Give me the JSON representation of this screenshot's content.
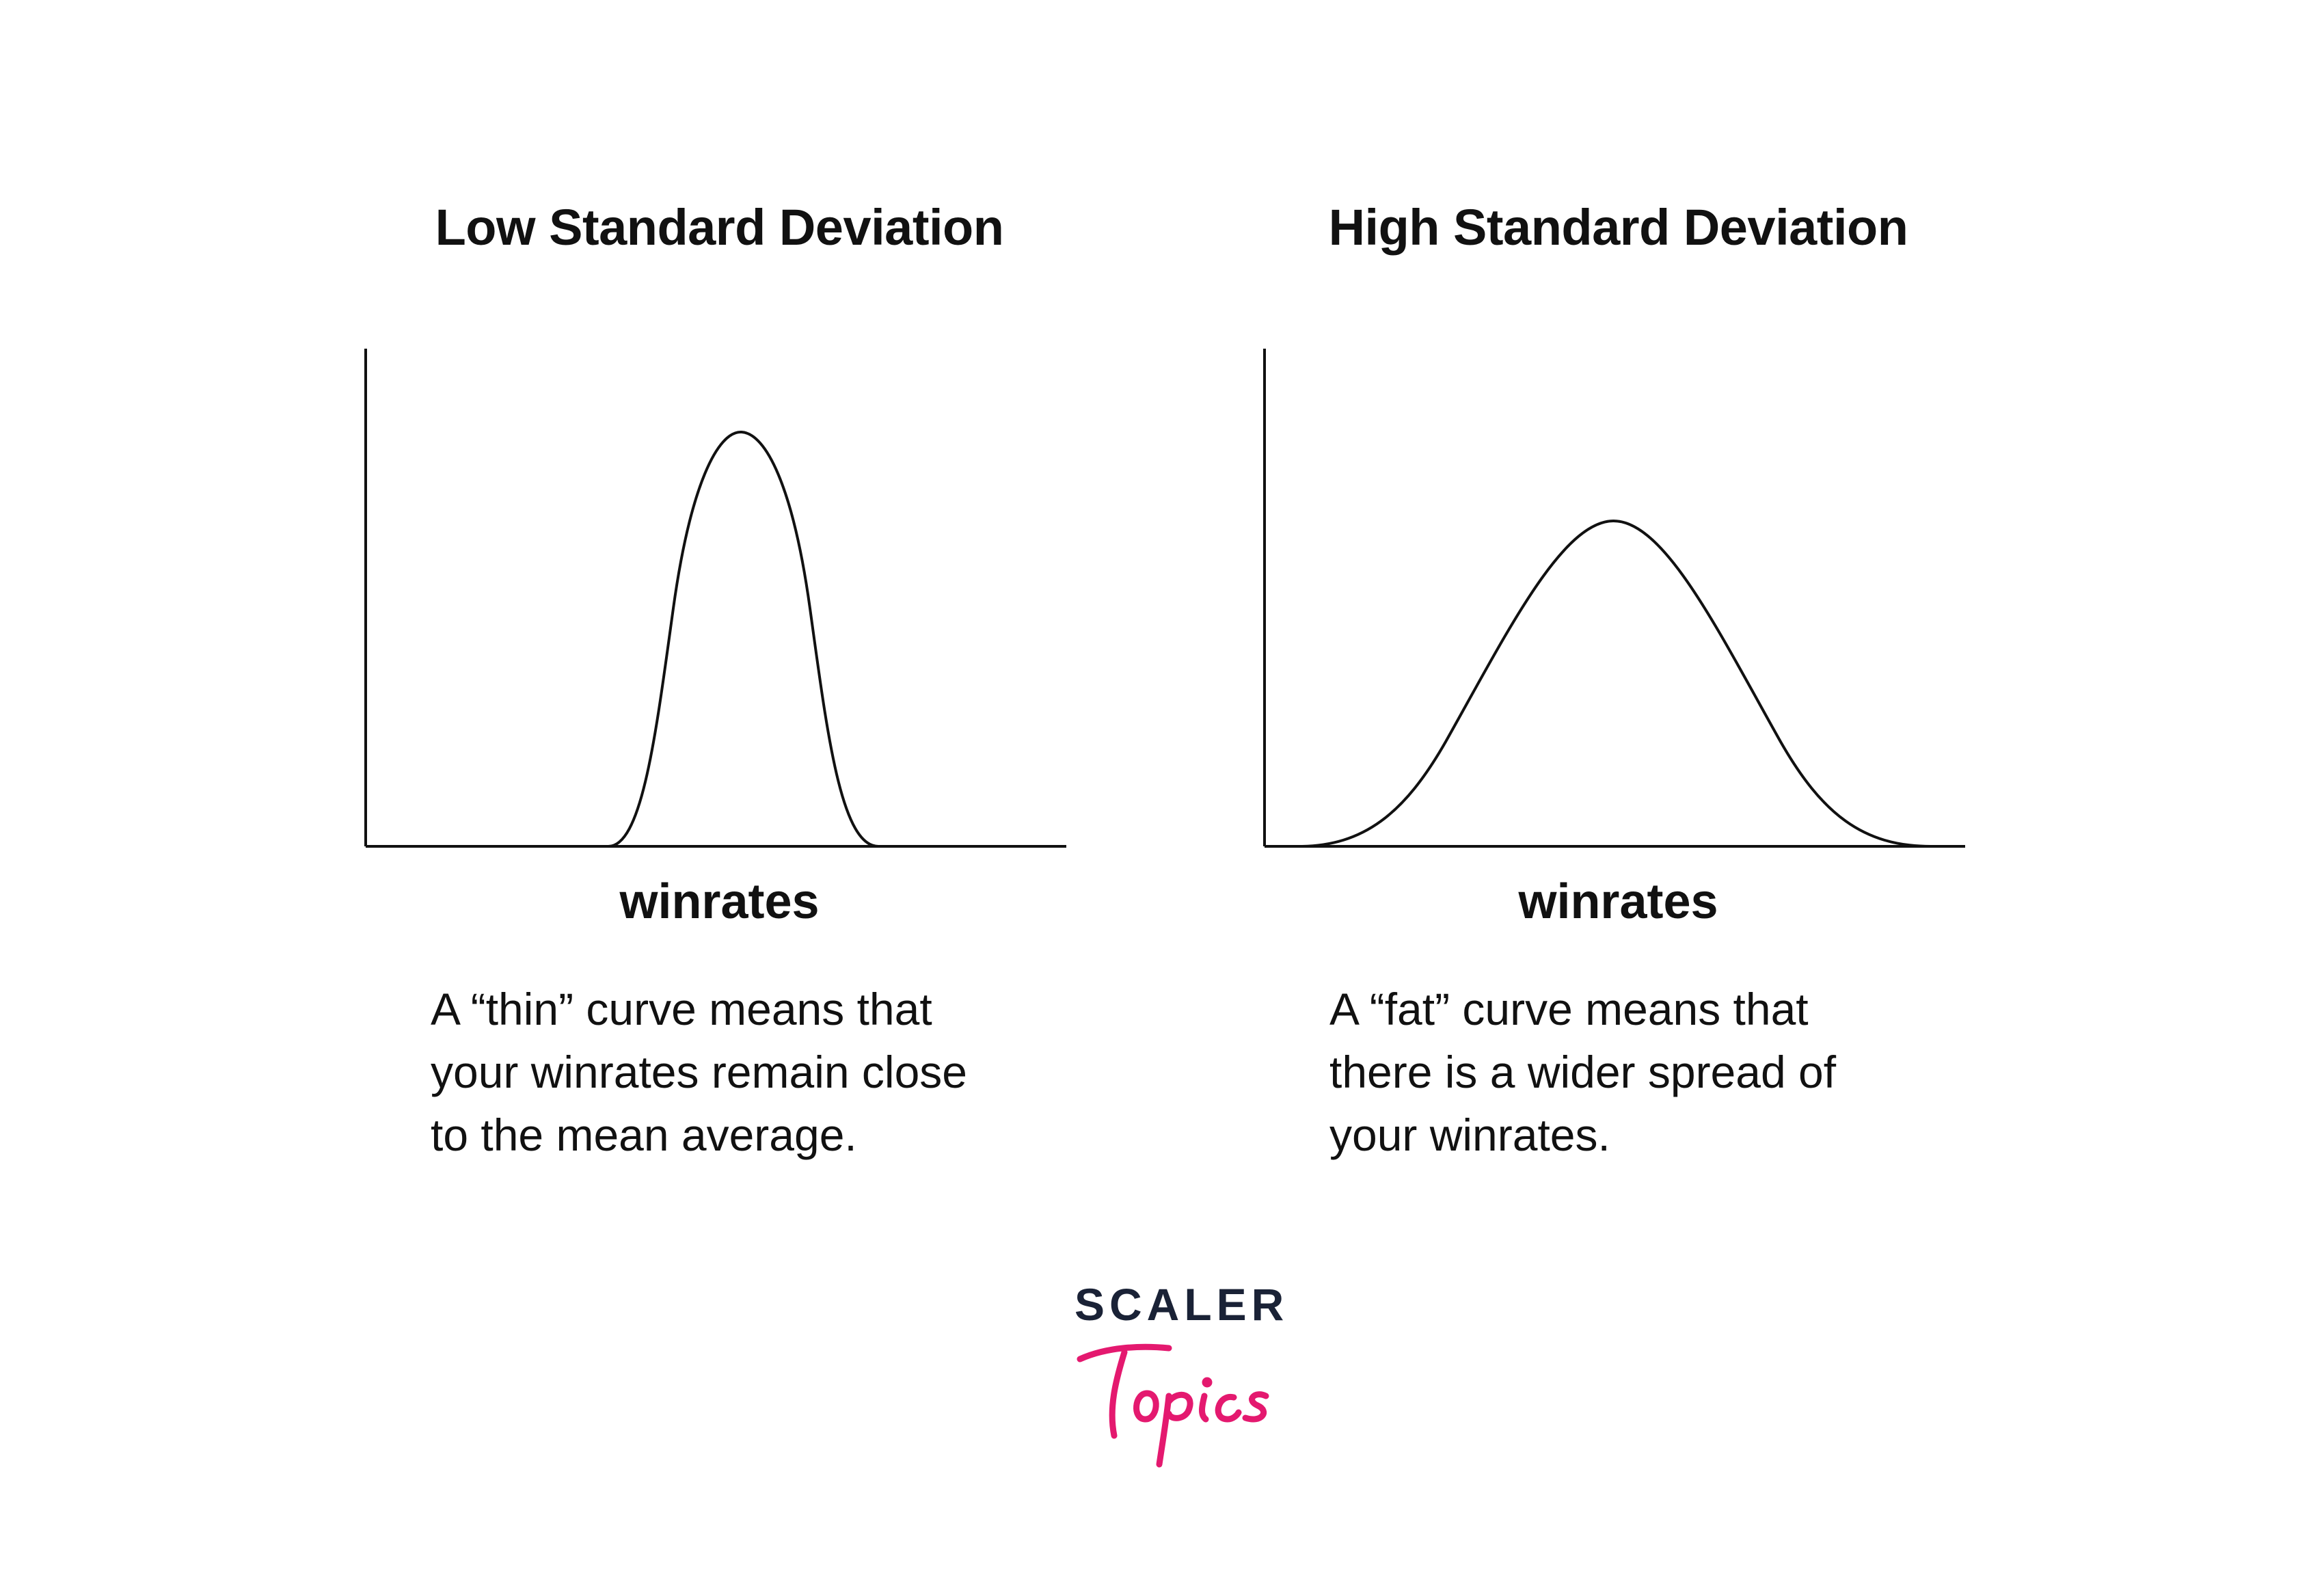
{
  "panels": [
    {
      "title": "Low Standard Deviation",
      "xlabel": "winrates",
      "caption_lines": [
        "A “thin” curve means that",
        "your winrates remain close",
        "to the mean average."
      ],
      "curve": {
        "type": "normal",
        "spread": "narrow"
      }
    },
    {
      "title": "High Standard Deviation",
      "xlabel": "winrates",
      "caption_lines": [
        "A “fat” curve means that",
        "there is a wider spread of",
        "your winrates."
      ],
      "curve": {
        "type": "normal",
        "spread": "wide"
      }
    }
  ],
  "logo": {
    "word": "SCALER",
    "script_text": "Topics",
    "word_color": "#1a2236",
    "script_color": "#e4196f"
  }
}
